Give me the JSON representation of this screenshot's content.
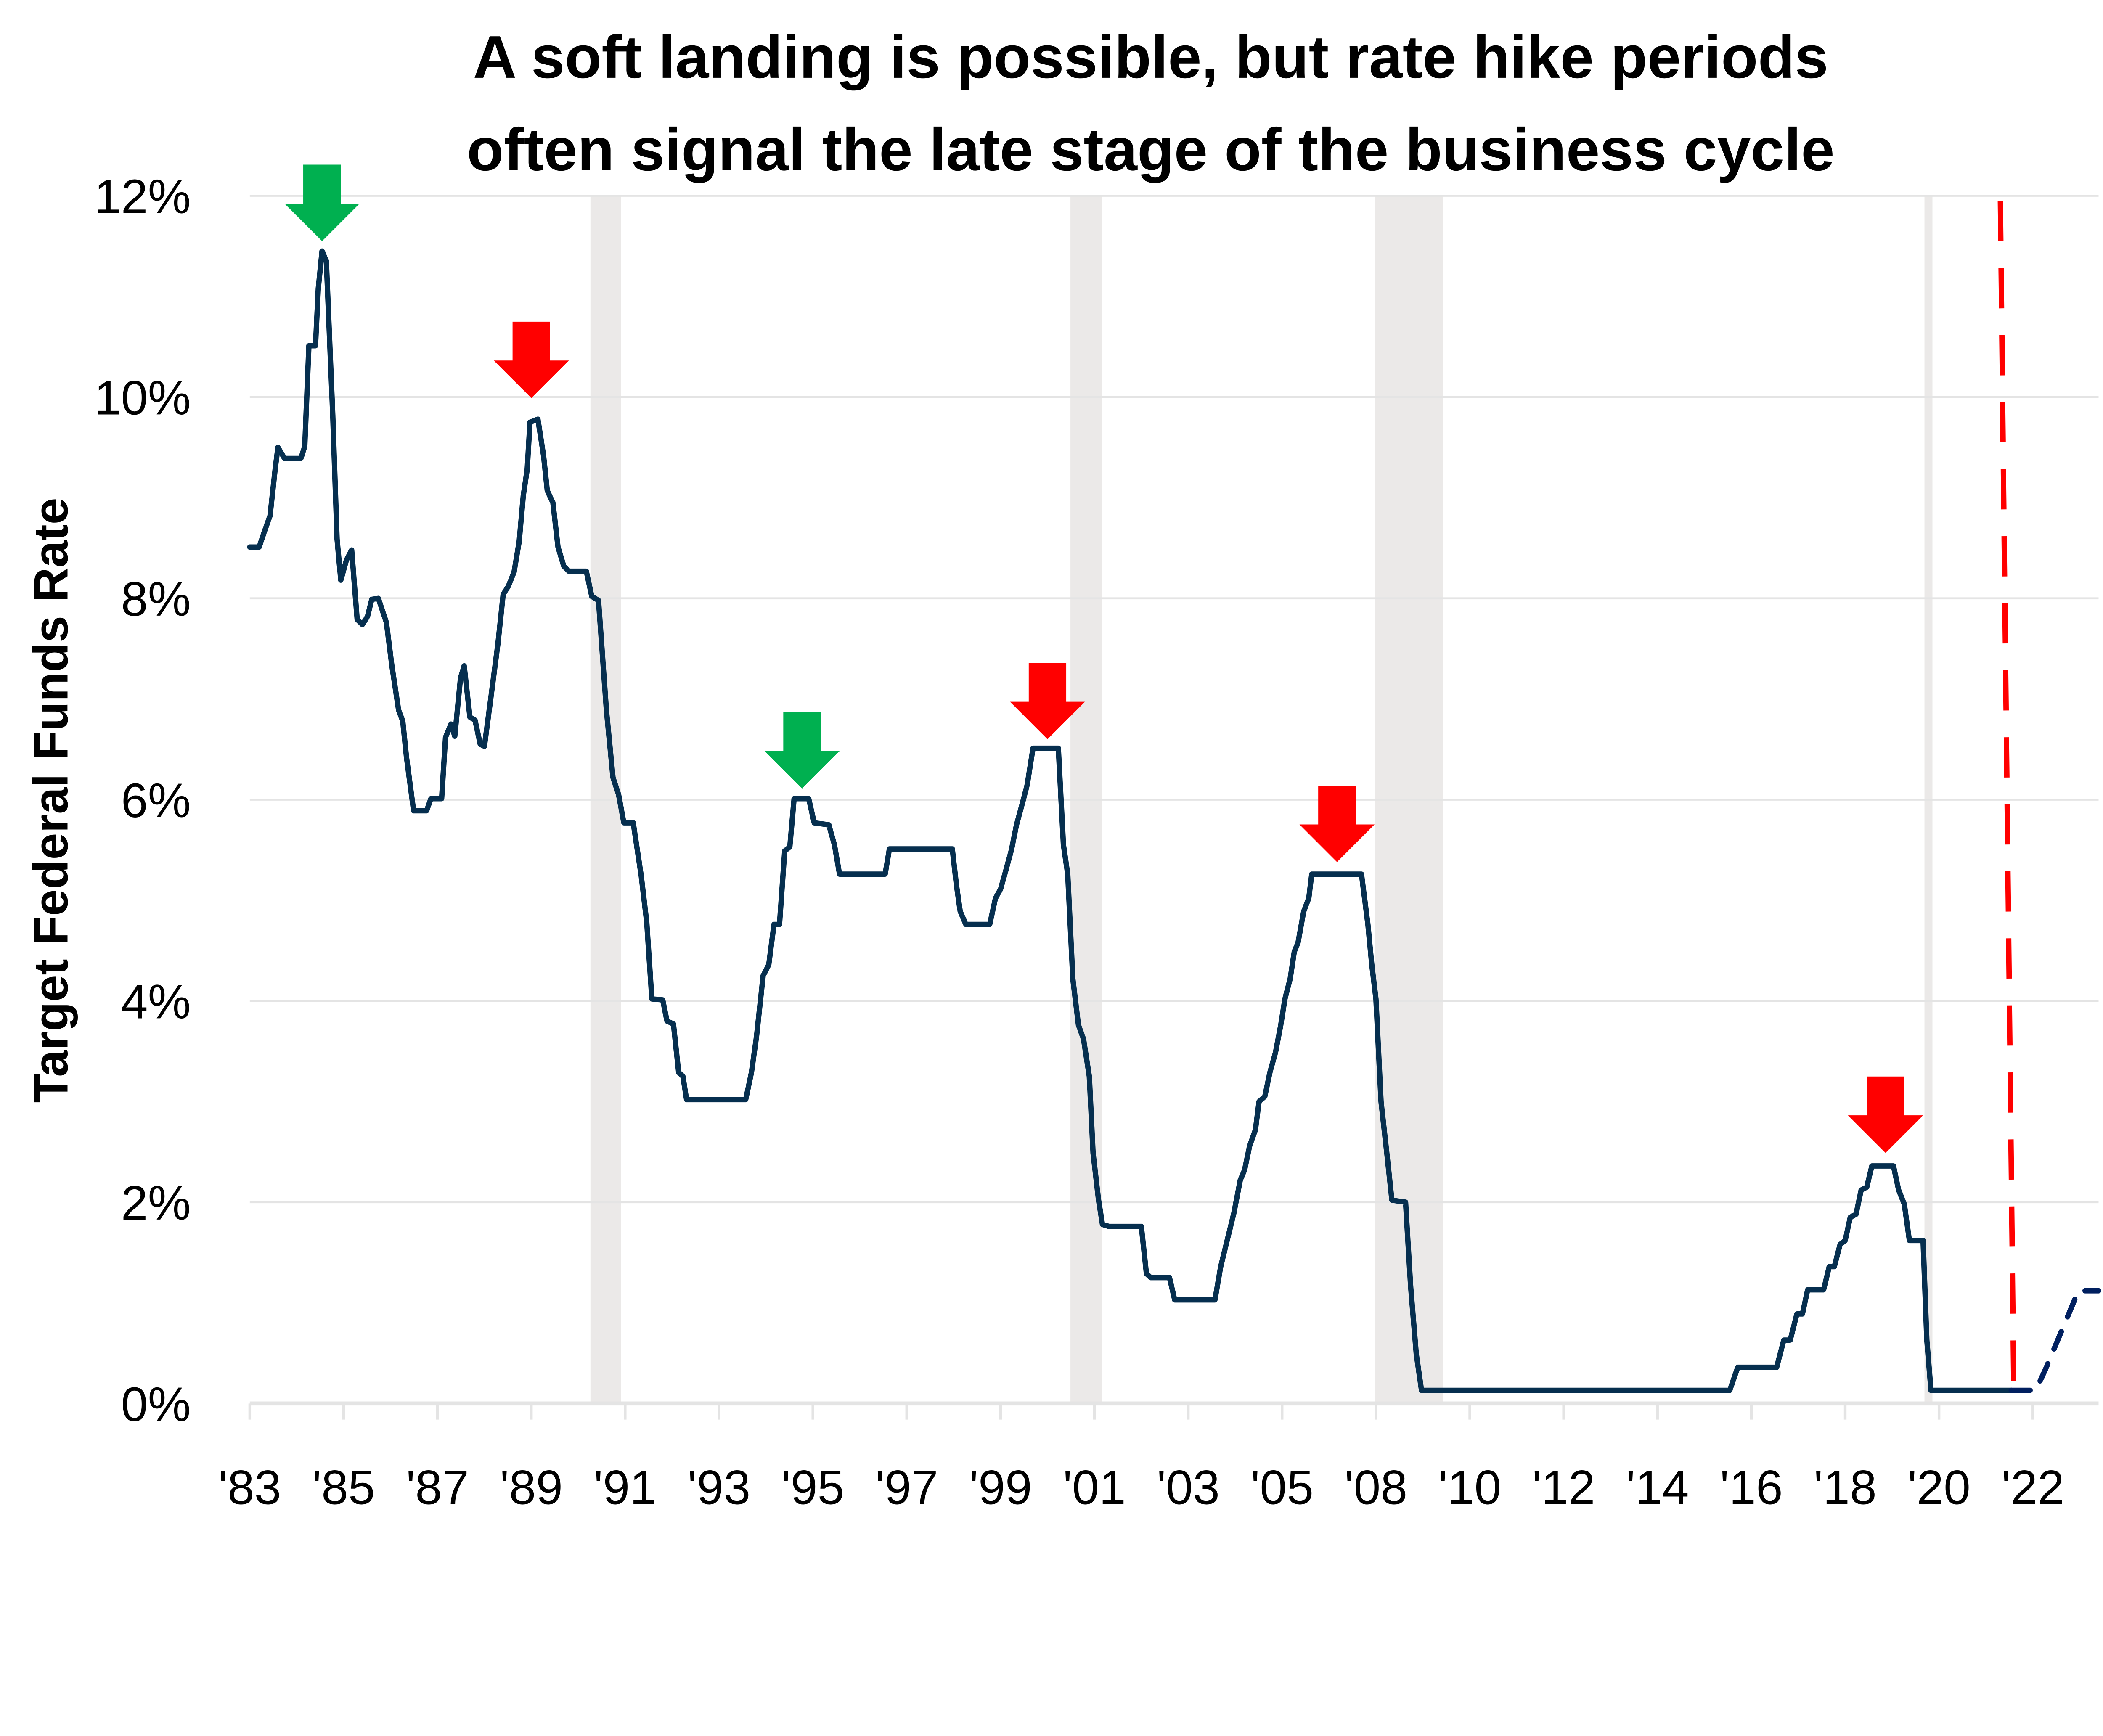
{
  "chart_data": {
    "type": "line",
    "title_lines": [
      "A soft landing is possible, but rate hike periods",
      "often signal the late stage of the business cycle"
    ],
    "xlabel": "",
    "ylabel": "Target Federal Funds Rate",
    "xlim": [
      1983,
      2022.4
    ],
    "ylim": [
      0,
      12
    ],
    "y_ticks": [
      0,
      2,
      4,
      6,
      8,
      10,
      12
    ],
    "y_tick_labels": [
      "0%",
      "2%",
      "4%",
      "6%",
      "8%",
      "10%",
      "12%"
    ],
    "x_tick_labels": [
      "'83",
      "'85",
      "'87",
      "'89",
      "'91",
      "'93",
      "'95",
      "'97",
      "'99",
      "'01",
      "'03",
      "'05",
      "'08",
      "'10",
      "'12",
      "'14",
      "'16",
      "'18",
      "'20",
      "'22"
    ],
    "grid": true,
    "colors": {
      "line": "#062f4f",
      "projection": "#001f5f",
      "recession": "#ebe9e8",
      "marker_line": "#ff0000",
      "red_arrow": "#ff0000",
      "green_arrow": "#00b050",
      "grid": "#e4e4e4"
    },
    "series": [
      {
        "style": "solid",
        "points": [
          [
            1983.0,
            8.51
          ],
          [
            1983.2,
            8.51
          ],
          [
            1983.31,
            8.66
          ],
          [
            1983.43,
            8.82
          ],
          [
            1983.54,
            9.28
          ],
          [
            1983.6,
            9.5
          ],
          [
            1983.74,
            9.39
          ],
          [
            1984.09,
            9.39
          ],
          [
            1984.17,
            9.51
          ],
          [
            1984.26,
            10.51
          ],
          [
            1984.4,
            10.51
          ],
          [
            1984.46,
            11.08
          ],
          [
            1984.54,
            11.45
          ],
          [
            1984.63,
            11.35
          ],
          [
            1984.77,
            9.82
          ],
          [
            1984.86,
            8.59
          ],
          [
            1984.94,
            8.18
          ],
          [
            1985.06,
            8.38
          ],
          [
            1985.17,
            8.48
          ],
          [
            1985.29,
            7.79
          ],
          [
            1985.4,
            7.74
          ],
          [
            1985.51,
            7.82
          ],
          [
            1985.6,
            7.99
          ],
          [
            1985.74,
            8.0
          ],
          [
            1985.91,
            7.76
          ],
          [
            1986.03,
            7.33
          ],
          [
            1986.17,
            6.89
          ],
          [
            1986.26,
            6.78
          ],
          [
            1986.34,
            6.42
          ],
          [
            1986.49,
            5.89
          ],
          [
            1986.77,
            5.89
          ],
          [
            1986.86,
            6.01
          ],
          [
            1987.09,
            6.01
          ],
          [
            1987.17,
            6.62
          ],
          [
            1987.29,
            6.75
          ],
          [
            1987.37,
            6.63
          ],
          [
            1987.49,
            7.21
          ],
          [
            1987.57,
            7.33
          ],
          [
            1987.69,
            6.82
          ],
          [
            1987.8,
            6.79
          ],
          [
            1987.91,
            6.55
          ],
          [
            1988.0,
            6.53
          ],
          [
            1988.14,
            7.02
          ],
          [
            1988.29,
            7.55
          ],
          [
            1988.4,
            8.04
          ],
          [
            1988.51,
            8.12
          ],
          [
            1988.63,
            8.26
          ],
          [
            1988.74,
            8.56
          ],
          [
            1988.83,
            9.02
          ],
          [
            1988.91,
            9.28
          ],
          [
            1988.97,
            9.75
          ],
          [
            1989.14,
            9.78
          ],
          [
            1989.26,
            9.42
          ],
          [
            1989.34,
            9.07
          ],
          [
            1989.46,
            8.95
          ],
          [
            1989.57,
            8.51
          ],
          [
            1989.69,
            8.32
          ],
          [
            1989.8,
            8.27
          ],
          [
            1990.17,
            8.27
          ],
          [
            1990.29,
            8.02
          ],
          [
            1990.43,
            7.98
          ],
          [
            1990.6,
            6.89
          ],
          [
            1990.74,
            6.22
          ],
          [
            1990.86,
            6.05
          ],
          [
            1990.97,
            5.77
          ],
          [
            1991.17,
            5.77
          ],
          [
            1991.34,
            5.25
          ],
          [
            1991.46,
            4.78
          ],
          [
            1991.57,
            4.02
          ],
          [
            1991.8,
            4.01
          ],
          [
            1991.89,
            3.8
          ],
          [
            1992.03,
            3.77
          ],
          [
            1992.14,
            3.29
          ],
          [
            1992.23,
            3.25
          ],
          [
            1992.31,
            3.02
          ],
          [
            1993.57,
            3.02
          ],
          [
            1993.69,
            3.29
          ],
          [
            1993.8,
            3.65
          ],
          [
            1993.94,
            4.25
          ],
          [
            1994.06,
            4.36
          ],
          [
            1994.17,
            4.76
          ],
          [
            1994.29,
            4.76
          ],
          [
            1994.4,
            5.49
          ],
          [
            1994.51,
            5.53
          ],
          [
            1994.6,
            6.01
          ],
          [
            1994.91,
            6.01
          ],
          [
            1995.03,
            5.77
          ],
          [
            1995.34,
            5.75
          ],
          [
            1995.46,
            5.55
          ],
          [
            1995.57,
            5.26
          ],
          [
            1996.54,
            5.26
          ],
          [
            1996.63,
            5.51
          ],
          [
            1997.97,
            5.51
          ],
          [
            1998.06,
            5.15
          ],
          [
            1998.14,
            4.89
          ],
          [
            1998.26,
            4.76
          ],
          [
            1998.77,
            4.76
          ],
          [
            1998.89,
            5.02
          ],
          [
            1999.0,
            5.11
          ],
          [
            1999.11,
            5.29
          ],
          [
            1999.23,
            5.5
          ],
          [
            1999.34,
            5.75
          ],
          [
            1999.49,
            6.01
          ],
          [
            1999.57,
            6.15
          ],
          [
            1999.69,
            6.51
          ],
          [
            2000.23,
            6.51
          ],
          [
            2000.34,
            5.55
          ],
          [
            2000.43,
            5.26
          ],
          [
            2000.54,
            4.22
          ],
          [
            2000.66,
            3.76
          ],
          [
            2000.77,
            3.62
          ],
          [
            2000.89,
            3.25
          ],
          [
            2000.97,
            2.49
          ],
          [
            2001.09,
            2.02
          ],
          [
            2001.17,
            1.78
          ],
          [
            2001.31,
            1.76
          ],
          [
            2002.0,
            1.76
          ],
          [
            2002.11,
            1.29
          ],
          [
            2002.2,
            1.25
          ],
          [
            2002.6,
            1.25
          ],
          [
            2002.71,
            1.03
          ],
          [
            2003.57,
            1.03
          ],
          [
            2003.69,
            1.36
          ],
          [
            2003.83,
            1.62
          ],
          [
            2003.97,
            1.89
          ],
          [
            2004.11,
            2.22
          ],
          [
            2004.2,
            2.32
          ],
          [
            2004.31,
            2.56
          ],
          [
            2004.43,
            2.72
          ],
          [
            2004.51,
            3.0
          ],
          [
            2004.63,
            3.05
          ],
          [
            2004.74,
            3.29
          ],
          [
            2004.86,
            3.49
          ],
          [
            2004.97,
            3.76
          ],
          [
            2005.06,
            4.02
          ],
          [
            2005.17,
            4.22
          ],
          [
            2005.26,
            4.49
          ],
          [
            2005.34,
            4.58
          ],
          [
            2005.46,
            4.89
          ],
          [
            2005.57,
            5.02
          ],
          [
            2005.63,
            5.26
          ],
          [
            2006.69,
            5.26
          ],
          [
            2006.83,
            4.76
          ],
          [
            2006.91,
            4.36
          ],
          [
            2007.0,
            4.02
          ],
          [
            2007.11,
            3.0
          ],
          [
            2007.23,
            2.49
          ],
          [
            2007.34,
            2.02
          ],
          [
            2007.63,
            2.0
          ],
          [
            2007.74,
            1.16
          ],
          [
            2007.86,
            0.49
          ],
          [
            2007.97,
            0.13
          ],
          [
            2014.54,
            0.13
          ],
          [
            2014.71,
            0.36
          ],
          [
            2015.54,
            0.36
          ],
          [
            2015.69,
            0.63
          ],
          [
            2015.83,
            0.63
          ],
          [
            2015.97,
            0.89
          ],
          [
            2016.09,
            0.89
          ],
          [
            2016.2,
            1.13
          ],
          [
            2016.54,
            1.13
          ],
          [
            2016.66,
            1.36
          ],
          [
            2016.77,
            1.36
          ],
          [
            2016.89,
            1.58
          ],
          [
            2017.0,
            1.62
          ],
          [
            2017.11,
            1.85
          ],
          [
            2017.23,
            1.88
          ],
          [
            2017.34,
            2.12
          ],
          [
            2017.46,
            2.15
          ],
          [
            2017.57,
            2.36
          ],
          [
            2018.03,
            2.36
          ],
          [
            2018.14,
            2.12
          ],
          [
            2018.26,
            1.98
          ],
          [
            2018.37,
            1.62
          ],
          [
            2018.66,
            1.62
          ],
          [
            2018.74,
            0.63
          ],
          [
            2018.83,
            0.13
          ],
          [
            2020.54,
            0.13
          ]
        ]
      },
      {
        "style": "dashed",
        "points": [
          [
            2020.54,
            0.13
          ],
          [
            2021.06,
            0.13
          ],
          [
            2021.26,
            0.33
          ],
          [
            2021.97,
            1.12
          ],
          [
            2022.4,
            1.12
          ]
        ]
      }
    ],
    "recessions": [
      [
        1990.26,
        1990.91
      ],
      [
        2000.49,
        2001.17
      ],
      [
        2006.97,
        2008.43
      ],
      [
        2018.69,
        2018.86
      ]
    ],
    "vertical_marker": {
      "x": 2020.45,
      "style": "dashed",
      "color": "#ff0000"
    },
    "arrows": [
      {
        "x": 1984.54,
        "y": 11.55,
        "color": "green"
      },
      {
        "x": 1989.0,
        "y": 9.99,
        "color": "red"
      },
      {
        "x": 1994.77,
        "y": 6.11,
        "color": "green"
      },
      {
        "x": 2000.0,
        "y": 6.6,
        "color": "red"
      },
      {
        "x": 2006.17,
        "y": 5.38,
        "color": "red"
      },
      {
        "x": 2017.86,
        "y": 2.49,
        "color": "red"
      }
    ]
  }
}
